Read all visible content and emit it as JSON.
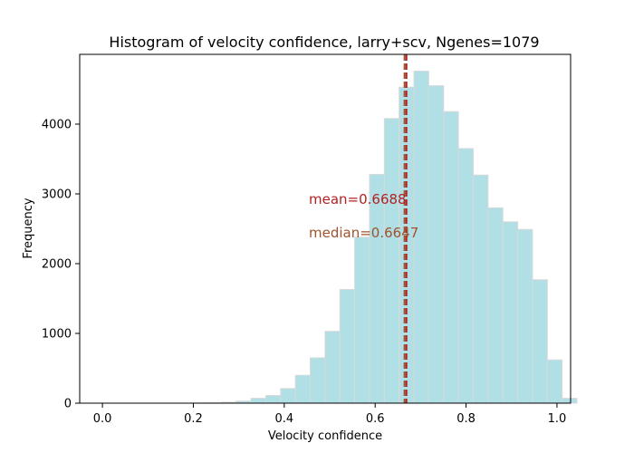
{
  "chart_data": {
    "type": "bar",
    "title": "Histogram of velocity confidence, larry+scv, Ngenes=1079",
    "xlabel": "Velocity confidence",
    "ylabel": "Frequency",
    "xlim": [
      -0.05,
      1.03
    ],
    "ylim": [
      0,
      5000
    ],
    "x_ticks": [
      "0.0",
      "0.2",
      "0.4",
      "0.6",
      "0.8",
      "1.0"
    ],
    "x_tick_values": [
      0.0,
      0.2,
      0.4,
      0.6,
      0.8,
      1.0
    ],
    "y_ticks": [
      "0",
      "1000",
      "2000",
      "3000",
      "4000"
    ],
    "y_tick_values": [
      0,
      1000,
      2000,
      3000,
      4000
    ],
    "grid": false,
    "bar_color": "#b0dfe5",
    "bar_edge_color": "#d9d9d9",
    "bins": {
      "edges_start": 0.1964,
      "bin_width": 0.0326,
      "values": [
        3,
        5,
        15,
        30,
        70,
        110,
        210,
        400,
        650,
        1030,
        1630,
        2380,
        3280,
        4080,
        4530,
        4760,
        4550,
        4180,
        3650,
        3270,
        2800,
        2600,
        2490,
        1770,
        620,
        70
      ]
    },
    "mean": 0.6688,
    "median": 0.6647,
    "mean_color": "#b22222",
    "median_color": "#a0522d",
    "annotations": {
      "mean_label": "mean=0.6688",
      "median_label": "median=0.6647"
    }
  }
}
